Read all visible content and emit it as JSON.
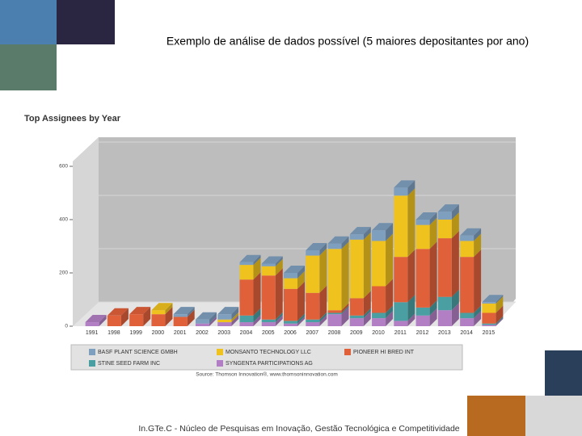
{
  "slide_title": "Exemplo de análise de dados possível (5 maiores depositantes por ano)",
  "footer": "In.GTe.C - Núcleo de Pesquisas em Inovação, Gestão Tecnológica e Competitividade",
  "chart_data": {
    "type": "bar",
    "stacked": true,
    "title": "Top Assignees by Year",
    "source": "Source: Thomson Innovation®, www.thomsoninnovation.com",
    "categories": [
      "1991",
      "1998",
      "1999",
      "2000",
      "2001",
      "2002",
      "2003",
      "2004",
      "2005",
      "2006",
      "2007",
      "2008",
      "2009",
      "2010",
      "2011",
      "2012",
      "2013",
      "2014",
      "2015"
    ],
    "ylim": [
      0,
      600
    ],
    "yticks": [
      0,
      200,
      400,
      600
    ],
    "grid": true,
    "series": [
      {
        "name": "SYNGENTA PARTICIPATIONS AG",
        "color": "#b27fc4",
        "values": [
          15,
          0,
          0,
          0,
          0,
          10,
          15,
          15,
          15,
          10,
          15,
          45,
          30,
          30,
          20,
          40,
          60,
          30,
          5
        ]
      },
      {
        "name": "STINE SEED FARM INC",
        "color": "#4a9fa3",
        "values": [
          0,
          0,
          0,
          0,
          0,
          0,
          0,
          25,
          10,
          10,
          10,
          5,
          10,
          20,
          70,
          30,
          50,
          20,
          5
        ]
      },
      {
        "name": "PIONEER HI BRED INT",
        "color": "#e0603a",
        "values": [
          0,
          40,
          45,
          45,
          35,
          0,
          0,
          135,
          165,
          120,
          100,
          10,
          65,
          100,
          170,
          220,
          220,
          210,
          40
        ]
      },
      {
        "name": "MONSANTO TECHNOLOGY LLC",
        "color": "#f0c21e",
        "values": [
          0,
          0,
          0,
          15,
          0,
          0,
          10,
          55,
          35,
          40,
          140,
          230,
          220,
          170,
          230,
          90,
          70,
          60,
          35
        ]
      },
      {
        "name": "BASF PLANT SCIENCE GMBH",
        "color": "#7f9fbf",
        "values": [
          0,
          0,
          0,
          0,
          10,
          15,
          20,
          10,
          10,
          20,
          20,
          20,
          20,
          40,
          30,
          20,
          30,
          20,
          5
        ]
      }
    ],
    "legend_order": [
      4,
      3,
      2,
      1,
      0
    ]
  }
}
